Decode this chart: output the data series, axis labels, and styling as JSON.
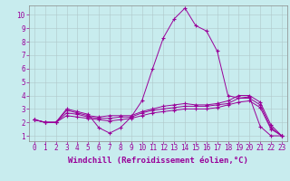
{
  "xlabel": "Windchill (Refroidissement éolien,°C)",
  "ylabel": "",
  "background_color": "#c8ecee",
  "line_color": "#990099",
  "xlim": [
    -0.5,
    23.5
  ],
  "ylim": [
    0.6,
    10.7
  ],
  "x": [
    0,
    1,
    2,
    3,
    4,
    5,
    6,
    7,
    8,
    9,
    10,
    11,
    12,
    13,
    14,
    15,
    16,
    17,
    18,
    19,
    20,
    21,
    22,
    23
  ],
  "line1": [
    2.2,
    2.0,
    2.0,
    3.0,
    2.8,
    2.6,
    1.6,
    1.2,
    1.6,
    2.4,
    3.6,
    6.0,
    8.3,
    9.7,
    10.5,
    9.2,
    8.8,
    7.3,
    4.0,
    3.8,
    3.9,
    1.7,
    1.0,
    1.0
  ],
  "line2": [
    2.2,
    2.0,
    2.0,
    2.9,
    2.7,
    2.5,
    2.4,
    2.5,
    2.5,
    2.5,
    2.8,
    3.0,
    3.2,
    3.3,
    3.4,
    3.3,
    3.3,
    3.4,
    3.6,
    4.0,
    4.0,
    3.5,
    1.8,
    1.0
  ],
  "line3": [
    2.2,
    2.0,
    2.0,
    2.7,
    2.6,
    2.4,
    2.3,
    2.3,
    2.4,
    2.4,
    2.7,
    2.9,
    3.0,
    3.1,
    3.2,
    3.2,
    3.2,
    3.3,
    3.4,
    3.8,
    3.8,
    3.3,
    1.6,
    1.0
  ],
  "line4": [
    2.2,
    2.0,
    2.0,
    2.5,
    2.4,
    2.3,
    2.2,
    2.1,
    2.2,
    2.3,
    2.5,
    2.7,
    2.8,
    2.9,
    3.0,
    3.0,
    3.0,
    3.1,
    3.3,
    3.5,
    3.6,
    3.1,
    1.5,
    1.0
  ],
  "yticks": [
    1,
    2,
    3,
    4,
    5,
    6,
    7,
    8,
    9,
    10
  ],
  "xticks": [
    0,
    1,
    2,
    3,
    4,
    5,
    6,
    7,
    8,
    9,
    10,
    11,
    12,
    13,
    14,
    15,
    16,
    17,
    18,
    19,
    20,
    21,
    22,
    23
  ],
  "grid_color": "#b0c8ca",
  "tick_fontsize": 5.5,
  "xlabel_fontsize": 6.5
}
